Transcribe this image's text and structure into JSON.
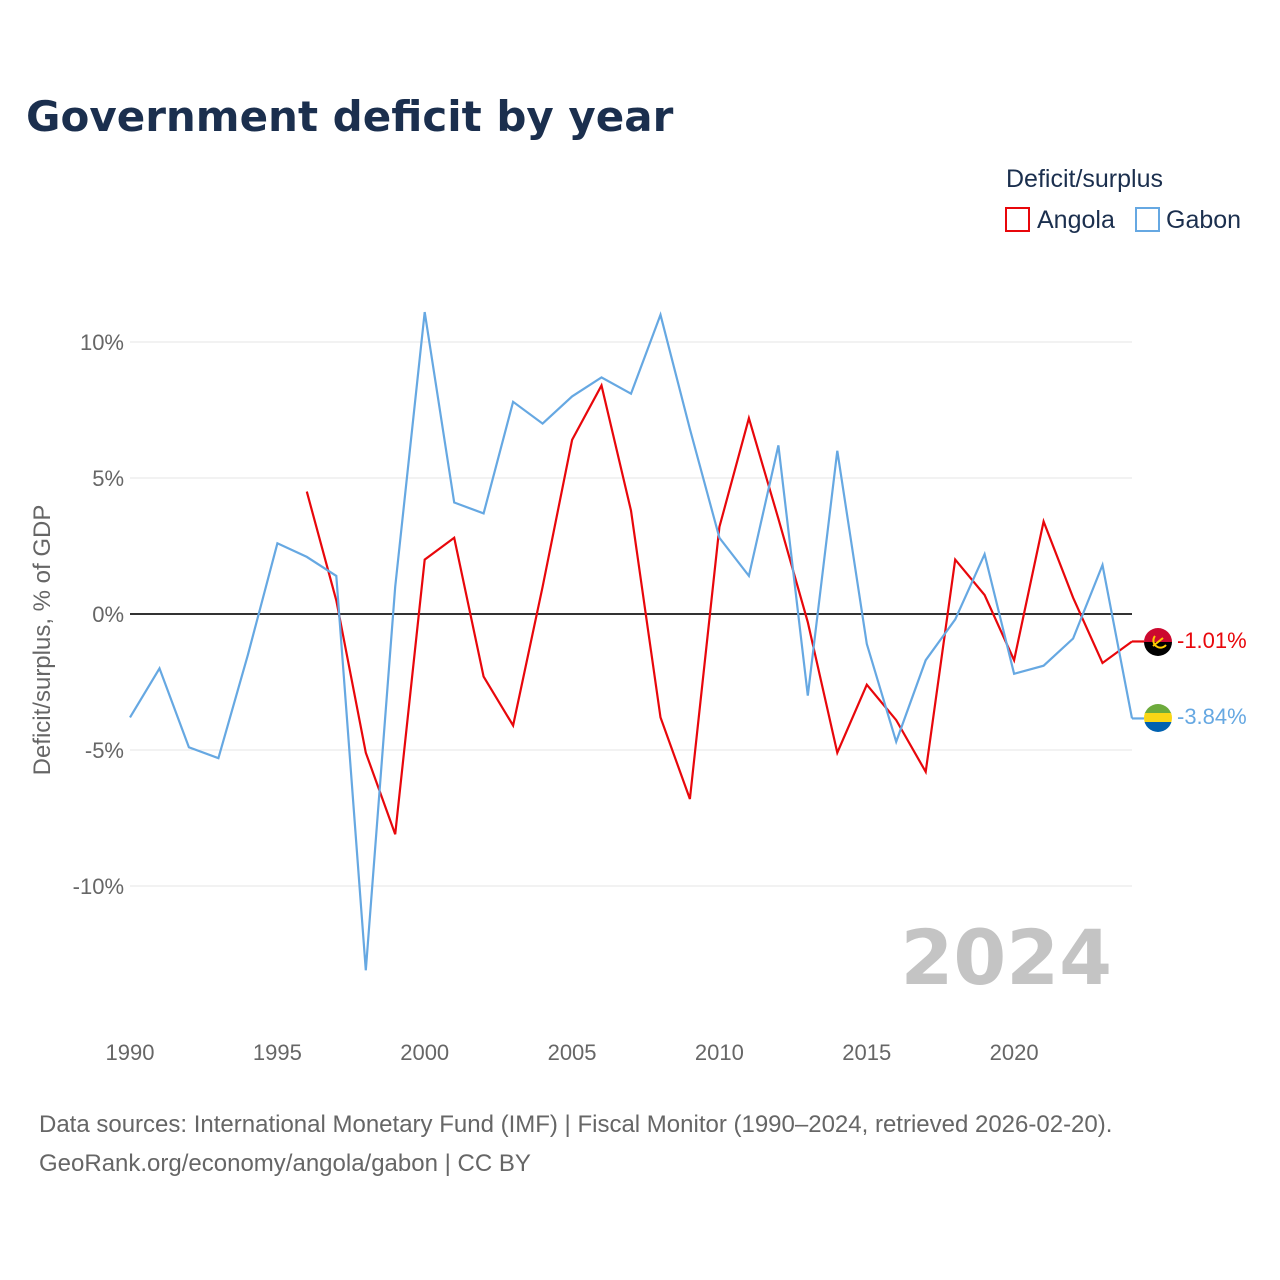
{
  "title": "Government deficit by year",
  "legend": {
    "title": "Deficit/surplus",
    "items": [
      {
        "name": "Angola",
        "color": "#e8070b"
      },
      {
        "name": "Gabon",
        "color": "#66a8e2"
      }
    ]
  },
  "watermark_year": "2024",
  "source_line1": "Data sources: International Monetary Fund (IMF) | Fiscal Monitor (1990–2024, retrieved 2026-02-20).",
  "source_line2": "GeoRank.org/economy/angola/gabon | CC BY",
  "end_labels": {
    "angola": "-1.01%",
    "gabon": "-3.84%"
  },
  "chart_data": {
    "type": "line",
    "title": "Government deficit by year",
    "xlabel": "",
    "ylabel": "Deficit/surplus, % of GDP",
    "xlim": [
      1990,
      2024
    ],
    "ylim": [
      -14.5,
      12
    ],
    "x_ticks": [
      1990,
      1995,
      2000,
      2005,
      2010,
      2015,
      2020
    ],
    "x_tick_labels": [
      "1990",
      "1995",
      "2000",
      "2005",
      "2010",
      "2015",
      "2020"
    ],
    "y_ticks": [
      10,
      5,
      0,
      -5,
      -10
    ],
    "y_tick_labels": [
      "10%",
      "5%",
      "0%",
      "-5%",
      "-10%"
    ],
    "zero_line": true,
    "legend_position": "top-right",
    "series": [
      {
        "name": "Angola",
        "color": "#e8070b",
        "x": [
          1996,
          1997,
          1998,
          1999,
          2000,
          2001,
          2002,
          2003,
          2004,
          2005,
          2006,
          2007,
          2008,
          2009,
          2010,
          2011,
          2012,
          2013,
          2014,
          2015,
          2016,
          2017,
          2018,
          2019,
          2020,
          2021,
          2022,
          2023,
          2024
        ],
        "values": [
          4.5,
          0.5,
          -5.1,
          -8.1,
          2.0,
          2.8,
          -2.3,
          -4.1,
          1.0,
          6.4,
          8.4,
          3.8,
          -3.8,
          -6.8,
          3.2,
          7.2,
          3.5,
          -0.3,
          -5.1,
          -2.6,
          -3.9,
          -5.8,
          2.0,
          0.7,
          -1.7,
          3.4,
          0.6,
          -1.8,
          -1.01
        ],
        "end_value": -1.01
      },
      {
        "name": "Gabon",
        "color": "#66a8e2",
        "x": [
          1990,
          1991,
          1992,
          1993,
          1994,
          1995,
          1996,
          1997,
          1998,
          1999,
          2000,
          2001,
          2002,
          2003,
          2004,
          2005,
          2006,
          2007,
          2008,
          2009,
          2010,
          2011,
          2012,
          2013,
          2014,
          2015,
          2016,
          2017,
          2018,
          2019,
          2020,
          2021,
          2022,
          2023,
          2024
        ],
        "values": [
          -3.8,
          -2.0,
          -4.9,
          -5.3,
          -1.5,
          2.6,
          2.1,
          1.4,
          -13.1,
          1.0,
          11.1,
          4.1,
          3.7,
          7.8,
          7.0,
          8.0,
          8.7,
          8.1,
          11.0,
          6.8,
          2.8,
          1.4,
          6.2,
          -3.0,
          6.0,
          -1.1,
          -4.7,
          -1.7,
          -0.2,
          2.2,
          -2.2,
          -1.9,
          -0.9,
          1.8,
          -3.84
        ],
        "end_value": -3.84
      }
    ]
  }
}
